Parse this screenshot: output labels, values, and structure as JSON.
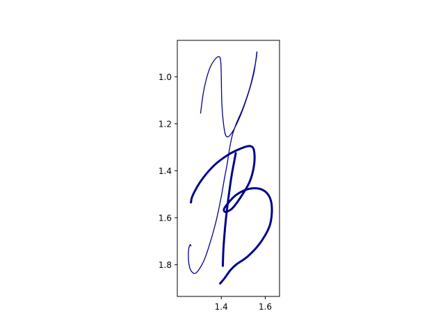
{
  "chart_data": {
    "type": "line",
    "title": "",
    "xlabel": "",
    "ylabel": "",
    "xlim": [
      1.2,
      1.665
    ],
    "ylim": [
      1.935,
      0.845
    ],
    "y_inverted": true,
    "grid": false,
    "legend": "none",
    "x_ticks": [
      {
        "value": 1.4,
        "label": "1.4"
      },
      {
        "value": 1.6,
        "label": "1.6"
      }
    ],
    "y_ticks": [
      {
        "value": 1.0,
        "label": "1.0"
      },
      {
        "value": 1.2,
        "label": "1.2"
      },
      {
        "value": 1.4,
        "label": "1.4"
      },
      {
        "value": 1.6,
        "label": "1.6"
      },
      {
        "value": 1.8,
        "label": "1.8"
      }
    ],
    "series": [
      {
        "color": "#00008b",
        "stroke": "thin",
        "x": [
          1.306,
          1.32,
          1.345,
          1.372,
          1.392,
          1.398,
          1.4,
          1.403,
          1.413,
          1.425,
          1.447,
          1.485,
          1.52,
          1.548,
          1.562,
          1.556,
          1.532,
          1.5,
          1.468,
          1.45,
          1.437,
          1.427,
          1.415,
          1.398,
          1.375,
          1.348,
          1.32,
          1.285,
          1.262,
          1.252,
          1.251,
          1.258,
          1.262
        ],
        "y": [
          1.155,
          1.06,
          0.97,
          0.925,
          0.915,
          0.94,
          1.0,
          1.12,
          1.22,
          1.255,
          1.24,
          1.17,
          1.08,
          0.985,
          0.895,
          0.94,
          1.04,
          1.13,
          1.2,
          1.25,
          1.31,
          1.37,
          1.43,
          1.52,
          1.62,
          1.71,
          1.785,
          1.835,
          1.825,
          1.79,
          1.74,
          1.715,
          1.72
        ]
      },
      {
        "color": "#00008b",
        "stroke": "thick",
        "x": [
          1.262,
          1.27,
          1.31,
          1.37,
          1.435,
          1.49,
          1.528,
          1.548,
          1.55,
          1.53,
          1.49,
          1.45,
          1.42,
          1.412,
          1.425,
          1.465,
          1.515,
          1.565,
          1.602,
          1.625,
          1.63,
          1.618,
          1.575,
          1.52,
          1.467,
          1.44,
          1.417,
          1.395
        ],
        "y": [
          1.535,
          1.505,
          1.44,
          1.375,
          1.33,
          1.305,
          1.295,
          1.31,
          1.37,
          1.445,
          1.51,
          1.56,
          1.575,
          1.565,
          1.545,
          1.505,
          1.48,
          1.475,
          1.49,
          1.525,
          1.58,
          1.64,
          1.71,
          1.765,
          1.8,
          1.825,
          1.855,
          1.88
        ]
      },
      {
        "color": "#00008b",
        "stroke": "thick",
        "x": [
          1.407,
          1.41,
          1.417,
          1.426,
          1.437,
          1.448,
          1.46,
          1.466
        ],
        "y": [
          1.805,
          1.73,
          1.645,
          1.565,
          1.485,
          1.415,
          1.355,
          1.325
        ]
      }
    ]
  }
}
